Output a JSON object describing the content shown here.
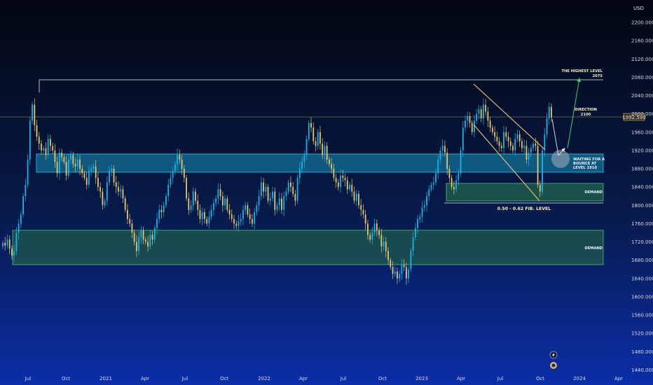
{
  "currency": "USD",
  "price_axis": {
    "ticks": [
      "2200.000",
      "2160.000",
      "2120.000",
      "2080.000",
      "2040.000",
      "2000.000",
      "1960.000",
      "1920.000",
      "1880.000",
      "1840.000",
      "1800.000",
      "1760.000",
      "1720.000",
      "1680.000",
      "1640.000",
      "1600.000",
      "1560.000",
      "1520.000",
      "1480.000",
      "1440.000"
    ],
    "current_price_label": "1992.590"
  },
  "time_axis": {
    "ticks": [
      "Jul",
      "Oct",
      "2021",
      "Apr",
      "Jul",
      "Oct",
      "2022",
      "Apr",
      "Jul",
      "Oct",
      "2023",
      "Apr",
      "Jul",
      "Oct",
      "2024",
      "Apr"
    ]
  },
  "annotations": {
    "highest_level": "THE HIGHEST LEVEL",
    "highest_level_value": "2075",
    "direction": "DIRECTION",
    "direction_value": "2100",
    "waiting_line1": "WAITING FOR A",
    "waiting_line2": "BOUNCE AT",
    "waiting_line3": "LEVEL 1910",
    "demand_upper": "DEMAND",
    "demand_lower": "DEMAND",
    "fib_level": "0.50 - 0.62 FIB. LEVEL"
  },
  "colors": {
    "up_candle": "#19b5e6",
    "down_candle": "#e8c66a",
    "resistance_zone": "#1c8fb7",
    "demand_zone": "#1f5a4c",
    "current_price_line": "#e2b454",
    "channel": "#e7c96a"
  },
  "chart_data": {
    "type": "candlestick",
    "currency": "USD",
    "ylim": [
      1440,
      2220
    ],
    "x_ticks": [
      "Jul",
      "Oct",
      "2021",
      "Apr",
      "Jul",
      "Oct",
      "2022",
      "Apr",
      "Jul",
      "Oct",
      "2023",
      "Apr",
      "Jul",
      "Oct",
      "2024",
      "Apr"
    ],
    "y_ticks": [
      2200,
      2160,
      2120,
      2080,
      2040,
      2000,
      1960,
      1920,
      1880,
      1840,
      1800,
      1760,
      1720,
      1680,
      1640,
      1600,
      1560,
      1520,
      1480,
      1440
    ],
    "current_price": 1992.59,
    "highest_level": 2075,
    "zones": [
      {
        "name": "resistance",
        "from": 1872,
        "to": 1910
      },
      {
        "name": "demand",
        "from": 1805,
        "to": 1845
      },
      {
        "name": "demand",
        "from": 1680,
        "to": 1752
      }
    ],
    "closes": [
      1718,
      1712,
      1725,
      1705,
      1690,
      1700,
      1740,
      1760,
      1780,
      1820,
      1845,
      1900,
      1985,
      2020,
      1975,
      1950,
      1935,
      1920,
      1925,
      1910,
      1945,
      1930,
      1920,
      1895,
      1870,
      1915,
      1905,
      1895,
      1865,
      1900,
      1910,
      1890,
      1885,
      1900,
      1880,
      1870,
      1860,
      1845,
      1875,
      1880,
      1885,
      1860,
      1840,
      1830,
      1800,
      1810,
      1850,
      1875,
      1880,
      1850,
      1840,
      1830,
      1835,
      1815,
      1790,
      1770,
      1760,
      1740,
      1720,
      1700,
      1730,
      1745,
      1725,
      1720,
      1710,
      1735,
      1725,
      1750,
      1770,
      1790,
      1785,
      1800,
      1820,
      1845,
      1860,
      1875,
      1890,
      1910,
      1900,
      1880,
      1860,
      1815,
      1790,
      1800,
      1830,
      1810,
      1790,
      1770,
      1785,
      1770,
      1760,
      1775,
      1790,
      1805,
      1815,
      1835,
      1820,
      1800,
      1815,
      1790,
      1780,
      1770,
      1760,
      1755,
      1765,
      1770,
      1790,
      1800,
      1780,
      1770,
      1760,
      1785,
      1800,
      1820,
      1850,
      1830,
      1840,
      1810,
      1815,
      1830,
      1790,
      1800,
      1815,
      1790,
      1820,
      1830,
      1850,
      1840,
      1825,
      1810,
      1860,
      1880,
      1895,
      1910,
      1945,
      1980,
      1970,
      1940,
      1930,
      1960,
      1935,
      1910,
      1930,
      1900,
      1890,
      1880,
      1860,
      1850,
      1840,
      1865,
      1860,
      1855,
      1835,
      1845,
      1830,
      1810,
      1825,
      1800,
      1790,
      1780,
      1760,
      1735,
      1725,
      1740,
      1760,
      1745,
      1735,
      1710,
      1720,
      1700,
      1680,
      1665,
      1650,
      1655,
      1640,
      1650,
      1670,
      1665,
      1640,
      1660,
      1700,
      1730,
      1750,
      1770,
      1775,
      1795,
      1800,
      1820,
      1835,
      1845,
      1850,
      1870,
      1900,
      1920,
      1930,
      1915,
      1880,
      1860,
      1840,
      1835,
      1855,
      1870,
      1920,
      1970,
      1985,
      1995,
      1980,
      1960,
      1985,
      2000,
      2010,
      1990,
      2020,
      2005,
      1985,
      1970,
      1960,
      1950,
      1940,
      1930,
      1925,
      1960,
      1950,
      1940,
      1930,
      1920,
      1945,
      1955,
      1940,
      1925,
      1930,
      1900,
      1915,
      1925,
      1935,
      1930,
      1845,
      1830,
      1920,
      1955,
      1990,
      2015,
      1992
    ]
  }
}
